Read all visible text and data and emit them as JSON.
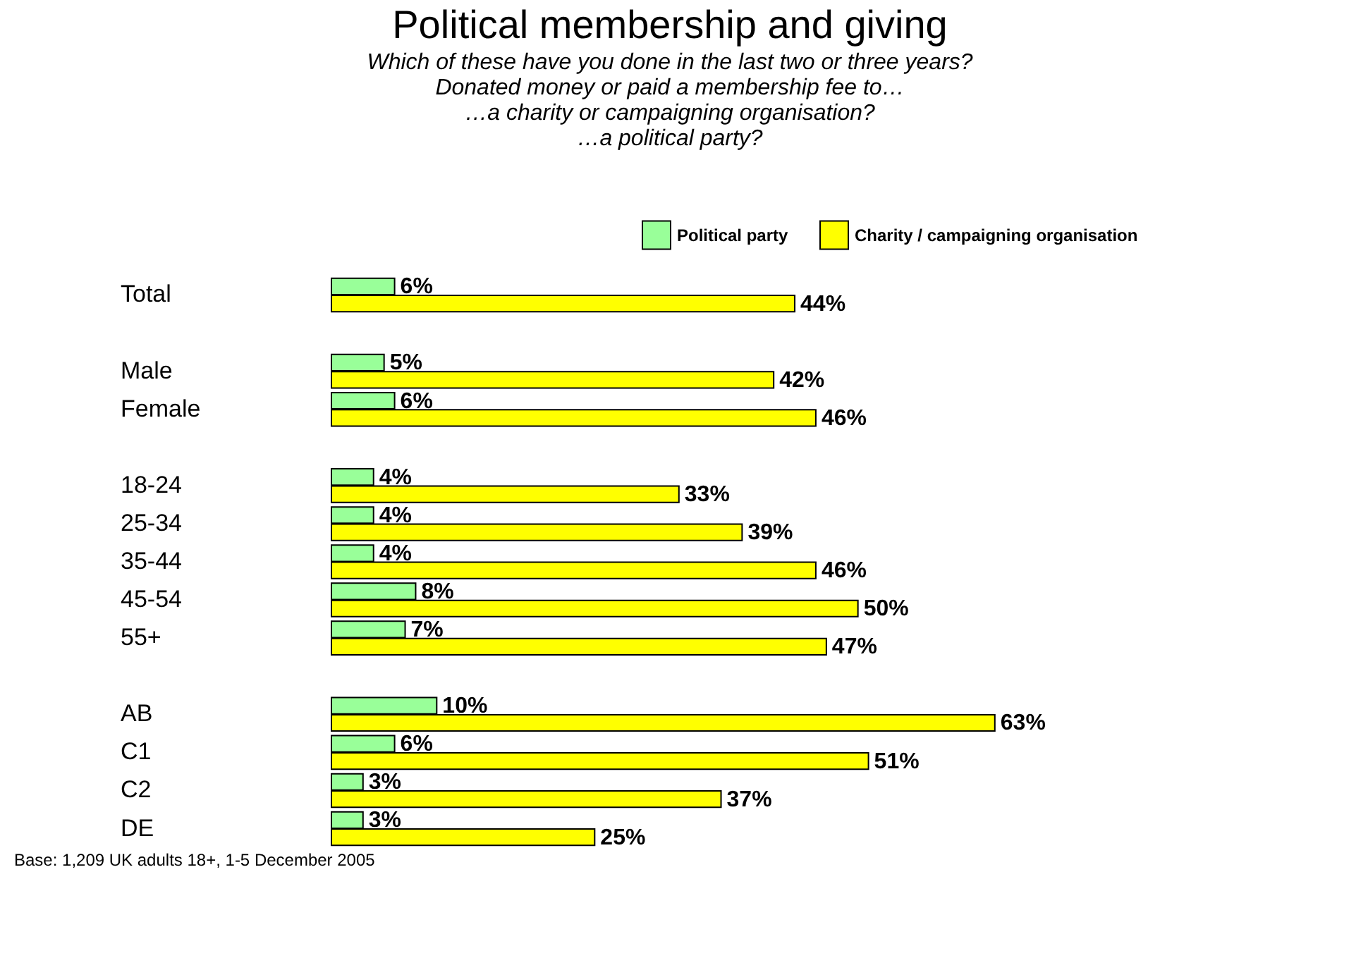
{
  "chart_data": {
    "type": "bar",
    "orientation": "horizontal",
    "title": "Political membership and giving",
    "subtitle": "Which of these have you done in the last two or three years?\nDonated money or paid a membership fee to…\n…a charity or campaigning organisation?\n…a political party?",
    "categories": [
      "Total",
      null,
      "Male",
      "Female",
      null,
      "18-24",
      "25-34",
      "35-44",
      "45-54",
      "55+",
      null,
      "AB",
      "C1",
      "C2",
      "DE"
    ],
    "series": [
      {
        "name": "Political party",
        "color": "#99ff99",
        "values": [
          6,
          null,
          5,
          6,
          null,
          4,
          4,
          4,
          8,
          7,
          null,
          10,
          6,
          3,
          3
        ],
        "value_labels": [
          "6%",
          null,
          "5%",
          "6%",
          null,
          "4%",
          "4%",
          "4%",
          "8%",
          "7%",
          null,
          "10%",
          "6%",
          "3%",
          "3%"
        ]
      },
      {
        "name": "Charity / campaigning organisation",
        "color": "#ffff00",
        "values": [
          44,
          null,
          42,
          46,
          null,
          33,
          39,
          46,
          50,
          47,
          null,
          63,
          51,
          37,
          25
        ],
        "value_labels": [
          "44%",
          null,
          "42%",
          "46%",
          null,
          "33%",
          "39%",
          "46%",
          "50%",
          "47%",
          null,
          "63%",
          "51%",
          "37%",
          "25%"
        ]
      }
    ],
    "legend": "top right",
    "annotations": [
      "Base: 1,209 UK adults 18+, 1-5 December 2005"
    ]
  }
}
